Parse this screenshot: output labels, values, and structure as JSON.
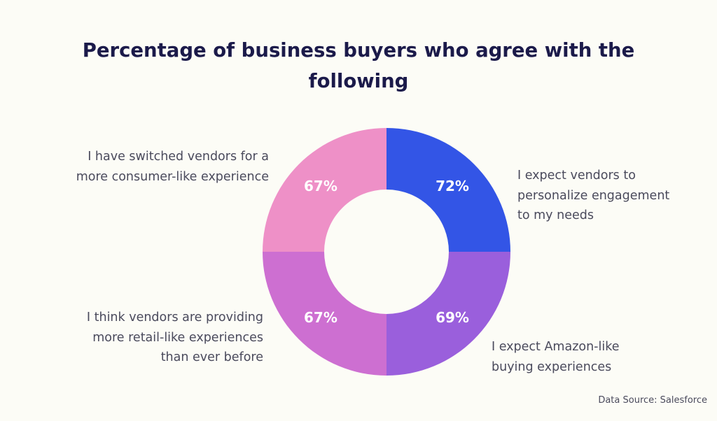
{
  "chart_data": {
    "type": "pie",
    "style": "donut",
    "title_lines": [
      "Percentage of business buyers who agree with the",
      "following"
    ],
    "slices": [
      {
        "category_lines": [
          "I expect vendors to",
          "personalize engagement",
          "to my needs"
        ],
        "value": 72,
        "label": "72%",
        "color": "#3355e6"
      },
      {
        "category_lines": [
          "I expect Amazon-like",
          "buying experiences"
        ],
        "value": 69,
        "label": "69%",
        "color": "#9a5fdc"
      },
      {
        "category_lines": [
          "I think vendors are providing",
          "more retail-like experiences",
          "than ever before"
        ],
        "value": 67,
        "label": "67%",
        "color": "#cd6fd1"
      },
      {
        "category_lines": [
          "I have switched vendors for a",
          "more consumer-like experience"
        ],
        "value": 67,
        "label": "67%",
        "color": "#ee90c7"
      }
    ],
    "slice_angle": "equal quarters",
    "start_angle": "12 o'clock, clockwise",
    "source": "Data Source: Salesforce"
  }
}
